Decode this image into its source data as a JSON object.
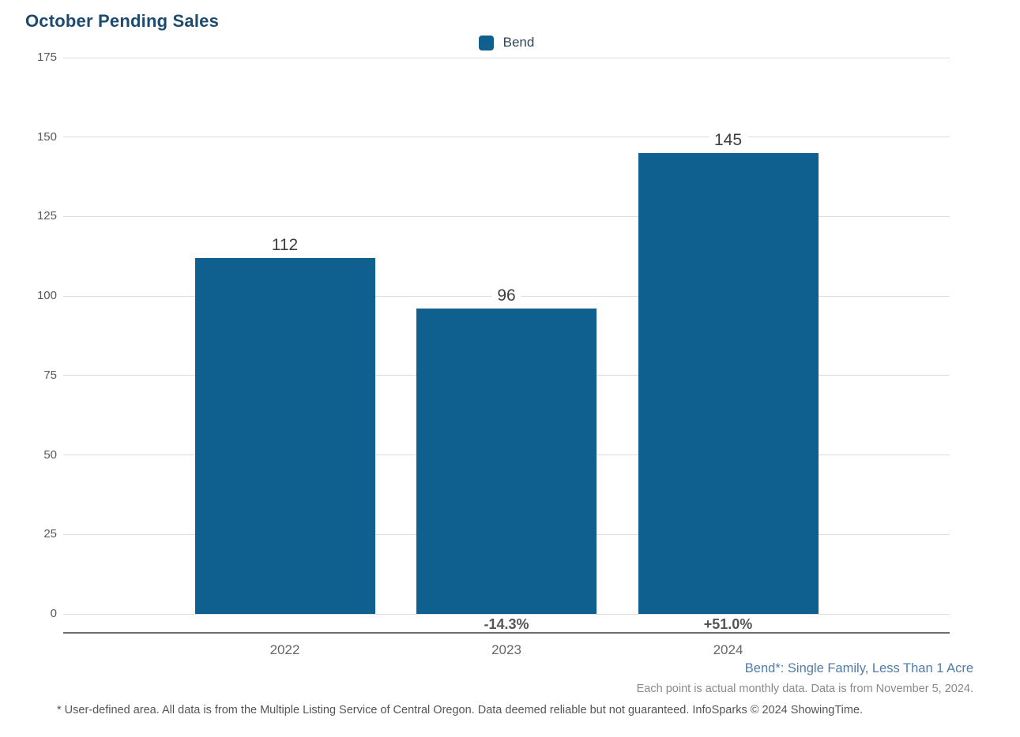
{
  "title": "October Pending Sales",
  "legend": {
    "label": "Bend",
    "swatch_color": "#10608f"
  },
  "chart_data": {
    "type": "bar",
    "title": "October Pending Sales",
    "series_name": "Bend",
    "categories": [
      "2022",
      "2023",
      "2024"
    ],
    "values": [
      112,
      96,
      145
    ],
    "value_labels": [
      "112",
      "96",
      "145"
    ],
    "pct_change_labels": [
      "",
      "-14.3%",
      "+51.0%"
    ],
    "bar_color": "#10608f",
    "xlabel": "",
    "ylabel": "",
    "ylim": [
      0,
      175
    ],
    "yticks": [
      0,
      25,
      50,
      75,
      100,
      125,
      150,
      175
    ],
    "grid": true,
    "legend_position": "top-center"
  },
  "footnotes": {
    "series_note": "Bend*: Single Family, Less Than 1 Acre",
    "data_note": "Each point is actual monthly data. Data is from November 5, 2024.",
    "disclaimer": "* User-defined area. All data is from the Multiple Listing Service of Central Oregon. Data deemed reliable but not guaranteed. InfoSparks © 2024 ShowingTime."
  },
  "colors": {
    "title_text": "#1d4a6f",
    "bar": "#10608f",
    "gridline": "#dcdcdc",
    "axis_line": "#6e6e6e",
    "series_note_text": "#4f7ca9",
    "muted_text": "#8a8a8a"
  }
}
